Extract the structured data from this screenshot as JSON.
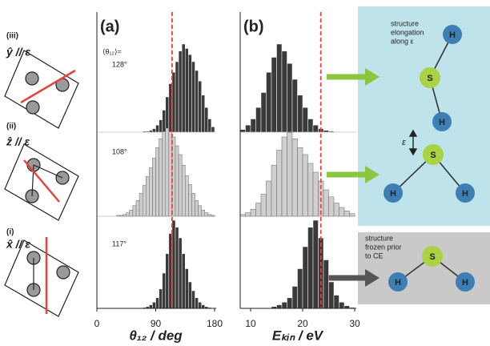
{
  "rows": [
    {
      "label": "(iii)",
      "axis": "ŷ // ε"
    },
    {
      "label": "(ii)",
      "axis": "ẑ // ε"
    },
    {
      "label": "(i)",
      "axis": "x̂ // ε"
    }
  ],
  "right_panel": {
    "elongation_text": [
      "structure",
      "elongation",
      "along ε"
    ],
    "field_label": "ε",
    "frozen_text": [
      "structure",
      "frozen prior",
      "to CE"
    ],
    "atom_labels": [
      "S",
      "H",
      "H"
    ]
  },
  "chart_data": [
    {
      "type": "histogram",
      "panel_label": "(a)",
      "xlabel": "θ₁₂ / deg",
      "xlim": [
        0,
        180
      ],
      "xticks": [
        0,
        90,
        180
      ],
      "bins": [
        0,
        5,
        10,
        15,
        20,
        25,
        30,
        35,
        40,
        45,
        50,
        55,
        60,
        65,
        70,
        75,
        80,
        85,
        90,
        95,
        100,
        105,
        110,
        115,
        120,
        125,
        130,
        135,
        140,
        145,
        150,
        155,
        160,
        165,
        170,
        175,
        180
      ],
      "ref_line": 115,
      "ref_color": "#e8413a",
      "series": [
        {
          "color": "#3a3a3a",
          "annotation": "⟨θ₁₂⟩=",
          "mean_label": "128°",
          "values": [
            0,
            0,
            0,
            0,
            0,
            0,
            0,
            0,
            0,
            0,
            0,
            0,
            0,
            0,
            1,
            1,
            2,
            4,
            8,
            14,
            25,
            40,
            55,
            68,
            80,
            92,
            100,
            95,
            88,
            80,
            70,
            58,
            42,
            28,
            15,
            6
          ]
        },
        {
          "color": "#cfcfcf",
          "mean_label": "108°",
          "values": [
            0,
            0,
            0,
            0,
            0,
            0,
            1,
            1,
            2,
            4,
            7,
            12,
            18,
            26,
            35,
            45,
            55,
            66,
            78,
            88,
            96,
            100,
            96,
            90,
            80,
            70,
            58,
            46,
            36,
            26,
            18,
            12,
            7,
            4,
            2,
            1
          ]
        },
        {
          "color": "#3a3a3a",
          "mean_label": "117°",
          "values": [
            0,
            0,
            0,
            0,
            0,
            0,
            0,
            0,
            0,
            0,
            0,
            0,
            0,
            0,
            1,
            2,
            4,
            7,
            12,
            22,
            40,
            62,
            85,
            100,
            92,
            80,
            62,
            45,
            30,
            20,
            12,
            7,
            4,
            2,
            1,
            0
          ]
        }
      ]
    },
    {
      "type": "histogram",
      "panel_label": "(b)",
      "xlabel": "Eₖᵢₙ / eV",
      "xlim": [
        8,
        30
      ],
      "xticks": [
        10,
        20,
        30
      ],
      "bins": [
        8,
        9,
        10,
        11,
        12,
        13,
        14,
        15,
        16,
        17,
        18,
        19,
        20,
        21,
        22,
        23,
        24,
        25,
        26,
        27,
        28,
        29,
        30
      ],
      "ref_line": 23.5,
      "ref_color": "#e8413a",
      "series": [
        {
          "color": "#3a3a3a",
          "values": [
            3,
            8,
            15,
            28,
            45,
            68,
            85,
            100,
            92,
            78,
            60,
            42,
            28,
            15,
            8,
            4,
            2,
            1,
            0,
            0,
            0,
            0
          ]
        },
        {
          "color": "#cfcfcf",
          "values": [
            2,
            4,
            8,
            15,
            25,
            40,
            58,
            75,
            90,
            95,
            88,
            78,
            70,
            60,
            50,
            40,
            30,
            22,
            15,
            10,
            6,
            3
          ]
        },
        {
          "color": "#3a3a3a",
          "values": [
            0,
            0,
            0,
            0,
            0,
            0,
            2,
            4,
            7,
            12,
            25,
            45,
            70,
            92,
            100,
            80,
            55,
            30,
            15,
            7,
            3,
            1
          ]
        }
      ]
    }
  ]
}
